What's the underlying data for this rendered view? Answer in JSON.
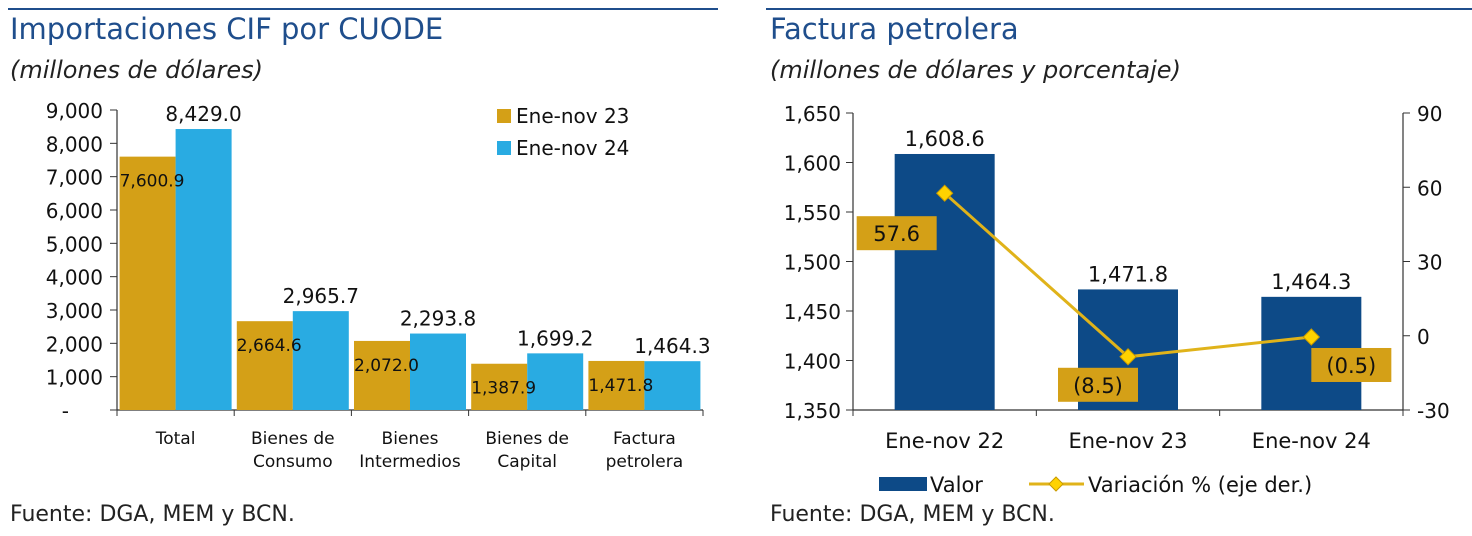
{
  "left_panel": {
    "title": "Importaciones CIF por CUODE",
    "subtitle": "(millones de dólares)",
    "source": "Fuente: DGA, MEM y BCN."
  },
  "right_panel": {
    "title": "Factura petrolera",
    "subtitle": "(millones de dólares y porcentaje)",
    "source": "Fuente: DGA, MEM y BCN."
  },
  "colors": {
    "title_blue": "#1f4e8c",
    "gold": "#d4a017",
    "sky": "#29abe2",
    "navy": "#0d4a87"
  },
  "chart_data": [
    {
      "type": "bar",
      "categories": [
        [
          "Total"
        ],
        [
          "Bienes de",
          "Consumo"
        ],
        [
          "Bienes",
          "Intermedios"
        ],
        [
          "Bienes de",
          "Capital"
        ],
        [
          "Factura",
          "petrolera"
        ]
      ],
      "series": [
        {
          "name": "Ene-nov 23",
          "values": [
            7600.9,
            2664.6,
            2072.0,
            1387.9,
            1471.8
          ],
          "labels": [
            "7,600.9",
            "2,664.6",
            "2,072.0",
            "1,387.9",
            "1,471.8"
          ],
          "color": "#d4a017"
        },
        {
          "name": "Ene-nov 24",
          "values": [
            8429.0,
            2965.7,
            2293.8,
            1699.2,
            1464.3
          ],
          "labels": [
            "8,429.0",
            "2,965.7",
            "2,293.8",
            "1,699.2",
            "1,464.3"
          ],
          "color": "#29abe2"
        }
      ],
      "ylim": [
        0,
        9000
      ],
      "yticks": [
        0,
        1000,
        2000,
        3000,
        4000,
        5000,
        6000,
        7000,
        8000,
        9000
      ],
      "ytick_labels": [
        "-",
        "1,000",
        "2,000",
        "3,000",
        "4,000",
        "5,000",
        "6,000",
        "7,000",
        "8,000",
        "9,000"
      ],
      "legend_position": "top-right"
    },
    {
      "type": "bar",
      "categories": [
        "Ene-nov 22",
        "Ene-nov 23",
        "Ene-nov 24"
      ],
      "series": [
        {
          "name": "Valor",
          "values": [
            1608.6,
            1471.8,
            1464.3
          ],
          "labels": [
            "1,608.6",
            "1,471.8",
            "1,464.3"
          ],
          "color": "#0d4a87",
          "axis": "left"
        },
        {
          "name": "Variación % (eje der.)",
          "type": "line",
          "values": [
            57.6,
            -8.5,
            -0.5
          ],
          "labels": [
            "57.6",
            "(8.5)",
            "(0.5)"
          ],
          "color": "#e0b31a",
          "axis": "right"
        }
      ],
      "ylim": [
        1350,
        1650
      ],
      "yticks": [
        1350,
        1400,
        1450,
        1500,
        1550,
        1600,
        1650
      ],
      "ytick_labels": [
        "1,350",
        "1,400",
        "1,450",
        "1,500",
        "1,550",
        "1,600",
        "1,650"
      ],
      "y2lim": [
        -30,
        90
      ],
      "y2ticks": [
        -30,
        0,
        30,
        60,
        90
      ],
      "y2tick_labels": [
        "-30",
        "0",
        "30",
        "60",
        "90"
      ],
      "legend_position": "bottom"
    }
  ]
}
